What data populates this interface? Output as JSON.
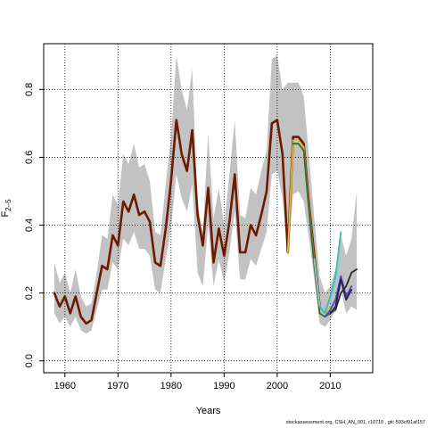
{
  "chart_data": {
    "type": "line",
    "xlabel": "Years",
    "ylabel_main": "F",
    "ylabel_sub": "2–5",
    "xlim": [
      1956,
      2018
    ],
    "ylim": [
      -0.035,
      0.935
    ],
    "xticks": [
      1960,
      1970,
      1980,
      1990,
      2000,
      2010
    ],
    "yticks": [
      0.0,
      0.2,
      0.4,
      0.6,
      0.8
    ],
    "grid": "dotted",
    "band": {
      "x": [
        1958,
        1959,
        1960,
        1961,
        1962,
        1963,
        1964,
        1965,
        1966,
        1967,
        1968,
        1969,
        1970,
        1971,
        1972,
        1973,
        1974,
        1975,
        1976,
        1977,
        1978,
        1979,
        1980,
        1981,
        1982,
        1983,
        1984,
        1985,
        1986,
        1987,
        1988,
        1989,
        1990,
        1991,
        1992,
        1993,
        1994,
        1995,
        1996,
        1997,
        1998,
        1999,
        2000,
        2001,
        2002,
        2003,
        2004,
        2005,
        2006,
        2007,
        2008,
        2009,
        2010,
        2011,
        2012,
        2013,
        2014,
        2015
      ],
      "upper": [
        0.29,
        0.23,
        0.26,
        0.2,
        0.27,
        0.19,
        0.16,
        0.17,
        0.26,
        0.37,
        0.36,
        0.49,
        0.46,
        0.61,
        0.58,
        0.64,
        0.57,
        0.58,
        0.53,
        0.38,
        0.37,
        0.52,
        0.66,
        0.9,
        0.8,
        0.74,
        0.86,
        0.46,
        0.38,
        0.67,
        0.42,
        0.51,
        0.4,
        0.55,
        0.71,
        0.43,
        0.42,
        0.51,
        0.49,
        0.56,
        0.62,
        0.89,
        0.9,
        0.8,
        0.82,
        0.82,
        0.82,
        0.78,
        0.6,
        0.42,
        0.25,
        0.2,
        0.22,
        0.27,
        0.37,
        0.31,
        0.36,
        0.5
      ],
      "lower": [
        0.14,
        0.11,
        0.13,
        0.1,
        0.13,
        0.09,
        0.08,
        0.09,
        0.15,
        0.21,
        0.21,
        0.29,
        0.27,
        0.36,
        0.34,
        0.38,
        0.33,
        0.33,
        0.31,
        0.21,
        0.2,
        0.3,
        0.39,
        0.55,
        0.48,
        0.44,
        0.52,
        0.26,
        0.22,
        0.4,
        0.22,
        0.3,
        0.23,
        0.32,
        0.44,
        0.24,
        0.24,
        0.3,
        0.28,
        0.33,
        0.38,
        0.55,
        0.56,
        0.48,
        0.31,
        0.49,
        0.5,
        0.47,
        0.36,
        0.24,
        0.11,
        0.1,
        0.12,
        0.15,
        0.21,
        0.14,
        0.16,
        0.15
      ]
    },
    "series": [
      {
        "color": "#6b1a00",
        "x": [
          1958,
          1959,
          1960,
          1961,
          1962,
          1963,
          1964,
          1965,
          1966,
          1967,
          1968,
          1969,
          1970,
          1971,
          1972,
          1973,
          1974,
          1975,
          1976,
          1977,
          1978,
          1979,
          1980,
          1981,
          1982,
          1983,
          1984,
          1985,
          1986,
          1987,
          1988,
          1989,
          1990,
          1991,
          1992,
          1993,
          1994,
          1995,
          1996,
          1997,
          1998,
          1999,
          2000,
          2001,
          2002,
          2003,
          2004,
          2005,
          2006,
          2007,
          2008
        ],
        "values": [
          0.2,
          0.16,
          0.19,
          0.14,
          0.19,
          0.13,
          0.11,
          0.12,
          0.2,
          0.28,
          0.27,
          0.37,
          0.34,
          0.47,
          0.44,
          0.49,
          0.43,
          0.44,
          0.41,
          0.29,
          0.28,
          0.39,
          0.53,
          0.71,
          0.61,
          0.56,
          0.68,
          0.43,
          0.34,
          0.51,
          0.29,
          0.39,
          0.31,
          0.41,
          0.55,
          0.32,
          0.32,
          0.4,
          0.37,
          0.43,
          0.5,
          0.7,
          0.71,
          0.61,
          0.32,
          0.66,
          0.66,
          0.64,
          0.46,
          0.31,
          0.16
        ]
      },
      {
        "color": "#e8b830",
        "x": [
          2002,
          2003,
          2004,
          2005,
          2006,
          2007,
          2008,
          2009,
          2010
        ],
        "values": [
          0.32,
          0.65,
          0.65,
          0.63,
          0.45,
          0.29,
          0.16,
          0.14,
          0.16
        ]
      },
      {
        "color": "#2f6d30",
        "x": [
          2003,
          2004,
          2005,
          2006,
          2007,
          2008,
          2009,
          2010,
          2011
        ],
        "values": [
          0.64,
          0.64,
          0.62,
          0.44,
          0.28,
          0.14,
          0.13,
          0.14,
          0.15
        ]
      },
      {
        "color": "#8fd0d0",
        "x": [
          2007,
          2008,
          2009,
          2010,
          2011,
          2012
        ],
        "values": [
          0.3,
          0.16,
          0.15,
          0.18,
          0.23,
          0.3
        ]
      },
      {
        "color": "#45b6b0",
        "x": [
          2008,
          2009,
          2010,
          2011,
          2012
        ],
        "values": [
          0.16,
          0.14,
          0.19,
          0.25,
          0.38
        ]
      },
      {
        "color": "#4a4ab0",
        "x": [
          2009,
          2010,
          2011,
          2012,
          2013,
          2014
        ],
        "values": [
          0.13,
          0.15,
          0.18,
          0.25,
          0.19,
          0.22
        ]
      },
      {
        "color": "#2a1a5c",
        "x": [
          2010,
          2011,
          2012,
          2013,
          2014
        ],
        "values": [
          0.14,
          0.16,
          0.24,
          0.18,
          0.21
        ]
      },
      {
        "color": "#2a2a2a",
        "x": [
          2011,
          2012,
          2013,
          2014,
          2015
        ],
        "values": [
          0.15,
          0.2,
          0.22,
          0.26,
          0.27
        ]
      }
    ],
    "band_color": "#c2c2c2"
  },
  "footer_text": "stockassessment.org, CSH_AN_001, r10710 , git: 503cf91af157"
}
